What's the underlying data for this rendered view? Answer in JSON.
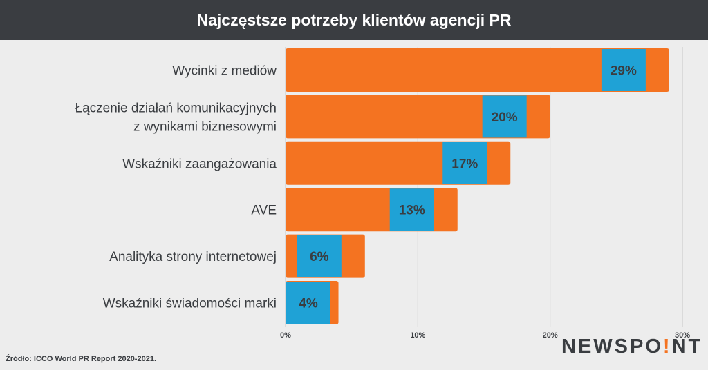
{
  "header": {
    "title": "Najczęstsze potrzeby klientów agencji PR"
  },
  "chart_data": {
    "type": "bar",
    "orientation": "horizontal",
    "categories": [
      [
        "Wycinki z mediów"
      ],
      [
        "Łączenie działań komunikacyjnych",
        "z wynikami biznesowymi"
      ],
      [
        "Wskaźniki zaangażowania"
      ],
      [
        "AVE"
      ],
      [
        "Analityka strony internetowej"
      ],
      [
        "Wskaźniki świadomości marki"
      ]
    ],
    "values": [
      29,
      20,
      17,
      13,
      6,
      4
    ],
    "value_labels": [
      "29%",
      "20%",
      "17%",
      "13%",
      "6%",
      "4%"
    ],
    "xlim": [
      0,
      30
    ],
    "xticks": [
      0,
      10,
      20,
      30
    ],
    "xtick_labels": [
      "0%",
      "10%",
      "20%",
      "30%"
    ],
    "grid": "vertical",
    "colors": {
      "bar": "#f47321",
      "label_box": "#1fa2d6",
      "grid": "#c8c8c8",
      "text": "#3a3d41"
    }
  },
  "footer": {
    "source": "Źródło: ICCO World PR Report 2020-2021.",
    "logo_part1": "NEWSPO",
    "logo_dot": "!",
    "logo_part2": "NT"
  }
}
